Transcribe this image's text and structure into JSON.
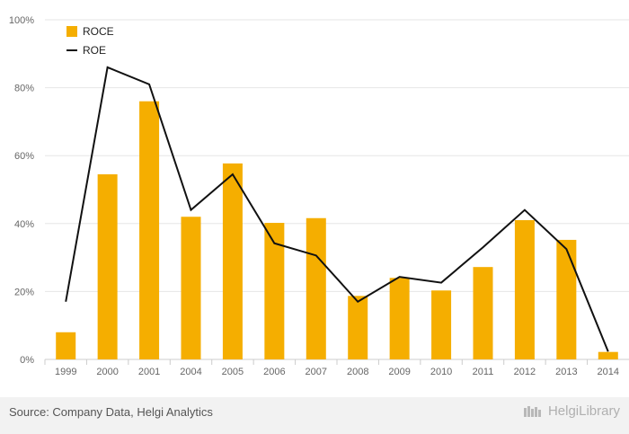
{
  "chart_data": {
    "type": "bar",
    "categories": [
      "1999",
      "2000",
      "2001",
      "2004",
      "2005",
      "2006",
      "2007",
      "2008",
      "2009",
      "2010",
      "2011",
      "2012",
      "2013",
      "2014"
    ],
    "series": [
      {
        "name": "ROCE",
        "type": "bar",
        "values": [
          8,
          54.5,
          76,
          42,
          57.7,
          40.2,
          41.6,
          18.7,
          24,
          20.3,
          27.2,
          41,
          35.2,
          2.2
        ]
      },
      {
        "name": "ROE",
        "type": "line",
        "values": [
          17,
          86,
          81,
          44,
          54.5,
          34.2,
          30.6,
          17,
          24.3,
          22.6,
          33,
          44,
          32.5,
          2.3
        ]
      }
    ],
    "yticks": [
      "0%",
      "20%",
      "40%",
      "60%",
      "80%",
      "100%"
    ],
    "ylim": [
      0,
      100
    ],
    "grid": true,
    "legend_position": "top-left",
    "colors": {
      "ROCE": "#f5ae00",
      "ROE": "#111111"
    }
  },
  "footer": {
    "source": "Source: Company Data, Helgi Analytics",
    "brand": "HelgiLibrary"
  }
}
